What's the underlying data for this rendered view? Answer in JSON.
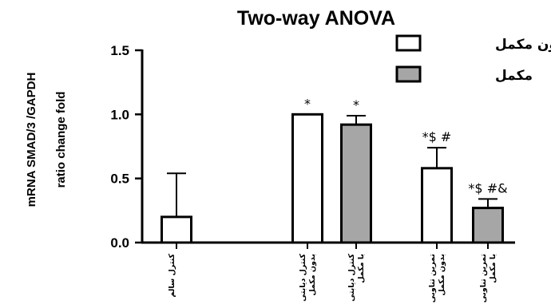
{
  "chart_data": {
    "type": "bar",
    "title": "Two-way ANOVA",
    "ylabel_lines": [
      "mRNA SMAD/3 /GAPDH",
      "ratio change fold"
    ],
    "xlabel": "",
    "ylim": [
      0,
      1.5
    ],
    "yticks": [
      "0.0",
      "0.5",
      "1.0",
      "1.5"
    ],
    "grid": false,
    "legend_position": "top-right",
    "series": [
      {
        "name": "بدون مکمل",
        "color": "#ffffff"
      },
      {
        "name": "مکمل",
        "color": "#a6a6a6"
      }
    ],
    "bars": [
      {
        "category_lines": [
          "کنترل سالم"
        ],
        "series": 0,
        "value": 0.2,
        "error": 0.34,
        "annotation": ""
      },
      {
        "category_lines": [
          "کنترل دیابتی",
          "بدون مکمل"
        ],
        "series": 0,
        "value": 1.0,
        "error": 0.0,
        "annotation": "*"
      },
      {
        "category_lines": [
          "کنترل دیابتی",
          "با مکمل"
        ],
        "series": 1,
        "value": 0.92,
        "error": 0.07,
        "annotation": "*"
      },
      {
        "category_lines": [
          "تمرین تناوبی",
          "بدون مکمل"
        ],
        "series": 0,
        "value": 0.58,
        "error": 0.16,
        "annotation": "*$ #"
      },
      {
        "category_lines": [
          "تمرین تناوبی",
          "با مکمل"
        ],
        "series": 1,
        "value": 0.27,
        "error": 0.07,
        "annotation": "*$ #&"
      }
    ]
  }
}
